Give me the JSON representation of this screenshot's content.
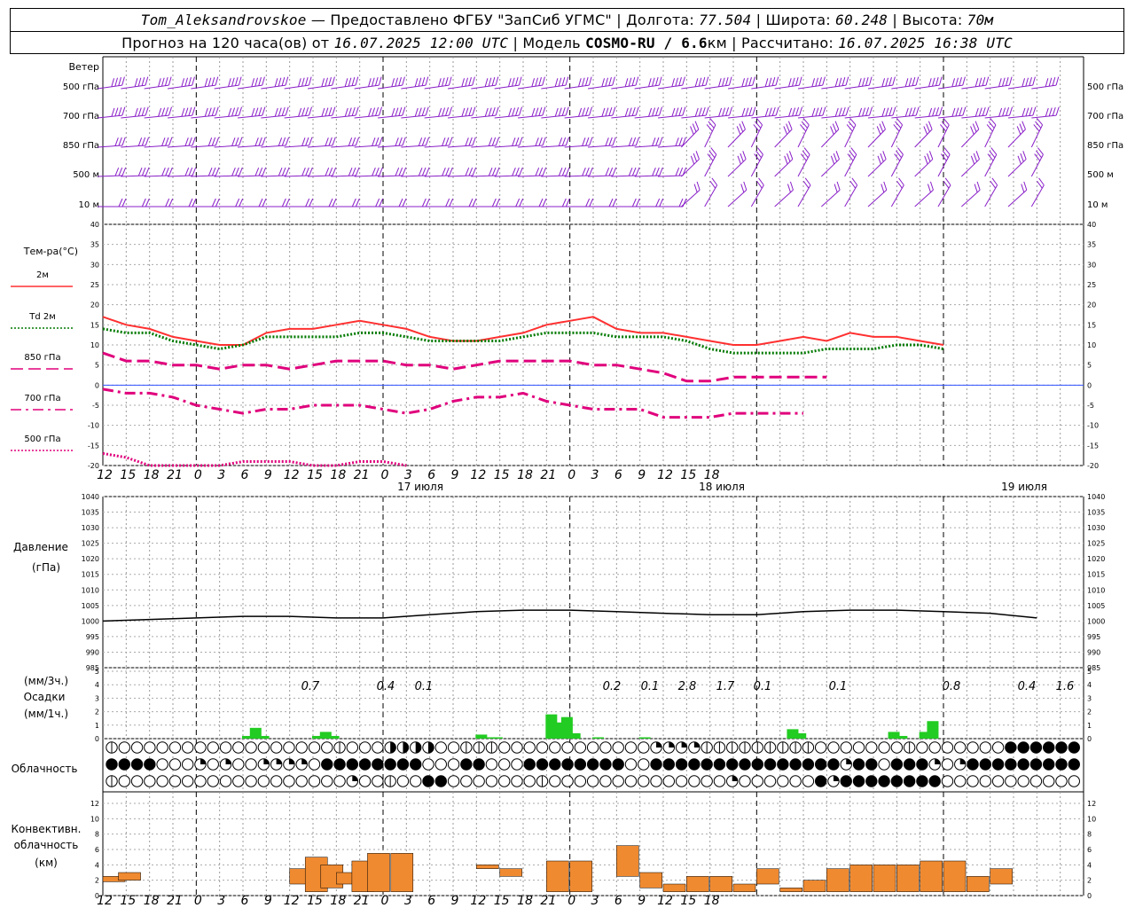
{
  "header": {
    "station": "Tom_Aleksandrovskoe",
    "provider": "— Предоставлено ФГБУ \"ЗапСиб УГМС\"",
    "lon_label": "Долгота:",
    "lon": "77.504",
    "lat_label": "Широта:",
    "lat": "60.248",
    "alt_label": "Высота:",
    "alt": "70м",
    "forecast_label": "Прогноз на 120 часа(ов) от",
    "forecast_time": "16.07.2025 12:00 UTC",
    "model_label": "Модель",
    "model": "COSMO-RU / 6.6",
    "model_unit": "км",
    "calc_label": "Рассчитано:",
    "calc_time": "16.07.2025 16:38 UTC"
  },
  "chart_data": [
    {
      "type": "wind_barbs",
      "title": "Ветер",
      "levels": [
        "500 гПа",
        "700 гПа",
        "850 гПа",
        "500 м",
        "10 м"
      ],
      "color": "#8a1fc8"
    },
    {
      "type": "line",
      "title": "Тем-ра(°C)",
      "ylim": [
        -20,
        40
      ],
      "yticks": [
        -20,
        -15,
        -10,
        -5,
        0,
        5,
        10,
        15,
        20,
        25,
        30,
        35,
        40
      ],
      "x_hours": [
        0,
        3,
        6,
        9,
        12,
        15,
        18,
        21,
        24,
        27,
        30,
        33,
        36,
        39,
        42,
        45,
        48,
        51,
        54,
        57,
        60,
        63,
        66,
        69,
        72,
        75,
        78,
        81,
        84,
        87,
        90,
        93,
        96,
        99,
        102,
        105,
        108,
        111,
        114,
        117,
        120
      ],
      "series": [
        {
          "name": "2м",
          "color": "#ff3030",
          "style": "solid",
          "values": [
            17,
            15,
            14,
            12,
            11,
            10,
            10,
            13,
            14,
            14,
            15,
            16,
            15,
            14,
            12,
            11,
            11,
            12,
            13,
            15,
            16,
            17,
            14,
            13,
            13,
            12,
            11,
            10,
            10,
            11,
            12,
            11,
            13,
            12,
            12,
            11,
            10
          ]
        },
        {
          "name": "Td 2м",
          "color": "#007a00",
          "style": "dotted",
          "values": [
            14,
            13,
            13,
            11,
            10,
            9,
            10,
            12,
            12,
            12,
            12,
            13,
            13,
            12,
            11,
            11,
            11,
            11,
            12,
            13,
            13,
            13,
            12,
            12,
            12,
            11,
            9,
            8,
            8,
            8,
            8,
            9,
            9,
            9,
            10,
            10,
            9
          ]
        },
        {
          "name": "850 гПа",
          "color": "#e0007c",
          "style": "dashed",
          "values": [
            8,
            6,
            6,
            5,
            5,
            4,
            5,
            5,
            4,
            5,
            6,
            6,
            6,
            5,
            5,
            4,
            5,
            6,
            6,
            6,
            6,
            5,
            5,
            4,
            3,
            1,
            1,
            2,
            2,
            2,
            2,
            2
          ]
        },
        {
          "name": "700 гПа",
          "color": "#e0007c",
          "style": "dashdot",
          "values": [
            -1,
            -2,
            -2,
            -3,
            -5,
            -6,
            -7,
            -6,
            -6,
            -5,
            -5,
            -5,
            -6,
            -7,
            -6,
            -4,
            -3,
            -3,
            -2,
            -4,
            -5,
            -6,
            -6,
            -6,
            -8,
            -8,
            -8,
            -7,
            -7,
            -7,
            -7
          ]
        },
        {
          "name": "500 гПа",
          "color": "#e0007c",
          "style": "dotted",
          "values": [
            -17,
            -18,
            -20,
            -20,
            -20,
            -20,
            -19,
            -19,
            -19,
            -20,
            -20,
            -19,
            -19,
            -20
          ]
        }
      ],
      "xticks_labels": [
        "12",
        "15",
        "18",
        "21",
        "0",
        "3",
        "6",
        "9",
        "12",
        "15",
        "18",
        "21",
        "0",
        "3",
        "6",
        "9",
        "12",
        "15",
        "18",
        "21",
        "0",
        "3",
        "6",
        "9",
        "12",
        "15",
        "18"
      ],
      "date_labels": [
        "17 июля",
        "18 июля",
        "19 июля"
      ]
    },
    {
      "type": "line",
      "title": "Давление",
      "ylabel": "(гПа)",
      "ylim": [
        985,
        1040
      ],
      "yticks": [
        985,
        990,
        995,
        1000,
        1005,
        1010,
        1015,
        1020,
        1025,
        1030,
        1035,
        1040
      ],
      "x_hours": [
        0,
        6,
        12,
        18,
        24,
        30,
        36,
        42,
        48,
        54,
        60,
        66,
        72,
        78,
        84,
        90,
        96,
        102,
        108,
        114,
        120
      ],
      "values": [
        1000,
        1000.5,
        1001,
        1001.5,
        1001.5,
        1001,
        1001,
        1002,
        1003,
        1003.5,
        1003.5,
        1003,
        1002.5,
        1002,
        1002,
        1003,
        1003.5,
        1003.5,
        1003,
        1002.5,
        1001
      ]
    },
    {
      "type": "bar",
      "title": "Осадки",
      "ylabel_top": "(мм/3ч.)",
      "ylabel_bottom": "(мм/1ч.)",
      "ylim": [
        0,
        5
      ],
      "color": "#22cc22",
      "annotations": [
        "0.7",
        "0.4",
        "0.1",
        "0.2",
        "0.1",
        "2.8",
        "1.7",
        "0.1",
        "0.1",
        "0.8",
        "0.4",
        "1.6"
      ]
    },
    {
      "type": "symbols",
      "title": "Облачность",
      "rows": 3
    },
    {
      "type": "bar",
      "title": "Конвективн. облачность (км)",
      "ylim": [
        0,
        13
      ],
      "yticks": [
        0,
        2,
        4,
        6,
        8,
        10,
        12
      ],
      "color": "#f08a30",
      "bars": [
        {
          "h": 0,
          "top": 2.5,
          "base": 1.8
        },
        {
          "h": 2,
          "top": 3.0,
          "base": 2.0
        },
        {
          "h": 24,
          "top": 3.5,
          "base": 1.5
        },
        {
          "h": 26,
          "top": 5.0,
          "base": 0.5
        },
        {
          "h": 28,
          "top": 4.0,
          "base": 1.0
        },
        {
          "h": 30,
          "top": 3.0,
          "base": 1.5
        },
        {
          "h": 32,
          "top": 4.5,
          "base": 0.5
        },
        {
          "h": 34,
          "top": 5.5,
          "base": 0.5
        },
        {
          "h": 37,
          "top": 5.5,
          "base": 0.5
        },
        {
          "h": 48,
          "top": 4.0,
          "base": 3.5
        },
        {
          "h": 51,
          "top": 3.5,
          "base": 2.5
        },
        {
          "h": 57,
          "top": 4.5,
          "base": 0.5
        },
        {
          "h": 60,
          "top": 4.5,
          "base": 0.5
        },
        {
          "h": 66,
          "top": 6.5,
          "base": 2.5
        },
        {
          "h": 69,
          "top": 3.0,
          "base": 1.0
        },
        {
          "h": 72,
          "top": 1.5,
          "base": 0.5
        },
        {
          "h": 75,
          "top": 2.5,
          "base": 0.5
        },
        {
          "h": 78,
          "top": 2.5,
          "base": 0.5
        },
        {
          "h": 81,
          "top": 1.5,
          "base": 0.5
        },
        {
          "h": 84,
          "top": 3.5,
          "base": 1.5
        },
        {
          "h": 87,
          "top": 1.0,
          "base": 0.5
        },
        {
          "h": 90,
          "top": 2.0,
          "base": 0.5
        },
        {
          "h": 93,
          "top": 3.5,
          "base": 0.5
        },
        {
          "h": 96,
          "top": 4.0,
          "base": 0.5
        },
        {
          "h": 99,
          "top": 4.0,
          "base": 0.5
        },
        {
          "h": 102,
          "top": 4.0,
          "base": 0.5
        },
        {
          "h": 105,
          "top": 4.5,
          "base": 0.5
        },
        {
          "h": 108,
          "top": 4.5,
          "base": 0.5
        },
        {
          "h": 111,
          "top": 2.5,
          "base": 0.5
        },
        {
          "h": 114,
          "top": 3.5,
          "base": 1.5
        }
      ]
    }
  ]
}
